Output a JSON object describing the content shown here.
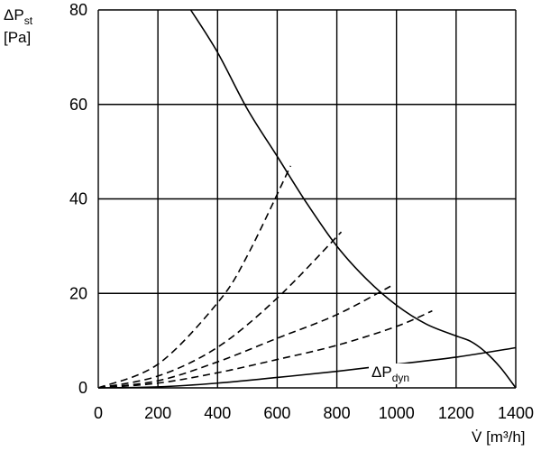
{
  "chart_data": {
    "type": "line",
    "title": "",
    "ylabel": {
      "main": "ΔP",
      "sub": "st",
      "unit": "[Pa]"
    },
    "xlabel": {
      "main": "V̇",
      "unit": "[m³/h]"
    },
    "xlim": [
      0,
      1400
    ],
    "ylim": [
      0,
      80
    ],
    "x_ticks": [
      0,
      200,
      400,
      600,
      800,
      1000,
      1200,
      1400
    ],
    "y_ticks": [
      0,
      20,
      40,
      60,
      80
    ],
    "grid": true,
    "series": [
      {
        "style": "solid",
        "x": [
          310,
          400,
          500,
          600,
          700,
          800,
          900,
          1000,
          1100,
          1200,
          1250,
          1300,
          1350,
          1400
        ],
        "y": [
          80,
          71,
          59,
          49,
          39,
          30,
          23,
          17.5,
          13.5,
          11,
          9.8,
          7.5,
          4.2,
          0
        ]
      },
      {
        "name": "ΔPdyn",
        "label": {
          "main": "ΔP",
          "sub": "dyn"
        },
        "style": "solid",
        "x": [
          0,
          200,
          400,
          600,
          800,
          1000,
          1200,
          1400
        ],
        "y": [
          0,
          0.2,
          1.0,
          2.2,
          3.5,
          5.0,
          6.5,
          8.5
        ]
      },
      {
        "style": "dashed",
        "x": [
          0,
          200,
          400,
          500,
          645
        ],
        "y": [
          0,
          5,
          18,
          28,
          47
        ]
      },
      {
        "style": "dashed",
        "x": [
          0,
          200,
          400,
          600,
          815
        ],
        "y": [
          0,
          2.5,
          8.6,
          19,
          33
        ]
      },
      {
        "style": "dashed",
        "x": [
          0,
          200,
          400,
          600,
          800,
          980
        ],
        "y": [
          0,
          1.5,
          5.5,
          10.5,
          15.5,
          21.5
        ]
      },
      {
        "style": "dashed",
        "x": [
          0,
          200,
          400,
          600,
          800,
          1000,
          1120
        ],
        "y": [
          0,
          1.0,
          3.2,
          6.0,
          9.0,
          13.0,
          16.3
        ]
      }
    ]
  }
}
